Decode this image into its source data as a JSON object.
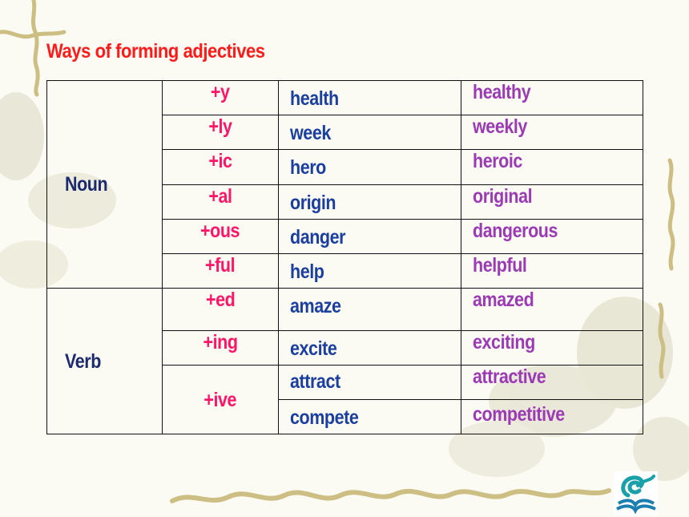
{
  "title": "Ways of forming adjectives",
  "table": {
    "noun_label": "Noun",
    "verb_label": "Verb",
    "noun_rows": [
      {
        "suffix": "+y",
        "base": "health",
        "adjective": "healthy"
      },
      {
        "suffix": "+ly",
        "base": "week",
        "adjective": "weekly"
      },
      {
        "suffix": "+ic",
        "base": "hero",
        "adjective": "heroic"
      },
      {
        "suffix": "+al",
        "base": "origin",
        "adjective": "original"
      },
      {
        "suffix": "+ous",
        "base": "danger",
        "adjective": "dangerous"
      },
      {
        "suffix": "+ful",
        "base": "help",
        "adjective": "helpful"
      }
    ],
    "verb_rows": [
      {
        "suffix": "+ed",
        "base": "amaze",
        "adjective": "amazed"
      },
      {
        "suffix": "+ing",
        "base": "excite",
        "adjective": "exciting"
      },
      {
        "suffix": "+ive",
        "base": "attract",
        "adjective": "attractive"
      },
      {
        "suffix": "",
        "base": "compete",
        "adjective": "competitive"
      }
    ]
  },
  "colors": {
    "title": "#ff1a1a",
    "category": "#1c2a6e",
    "suffix": "#ff1466",
    "base": "#1a3fa0",
    "adjective": "#9b3ab4"
  },
  "logo": {
    "icon": "education-book-logo-icon"
  }
}
